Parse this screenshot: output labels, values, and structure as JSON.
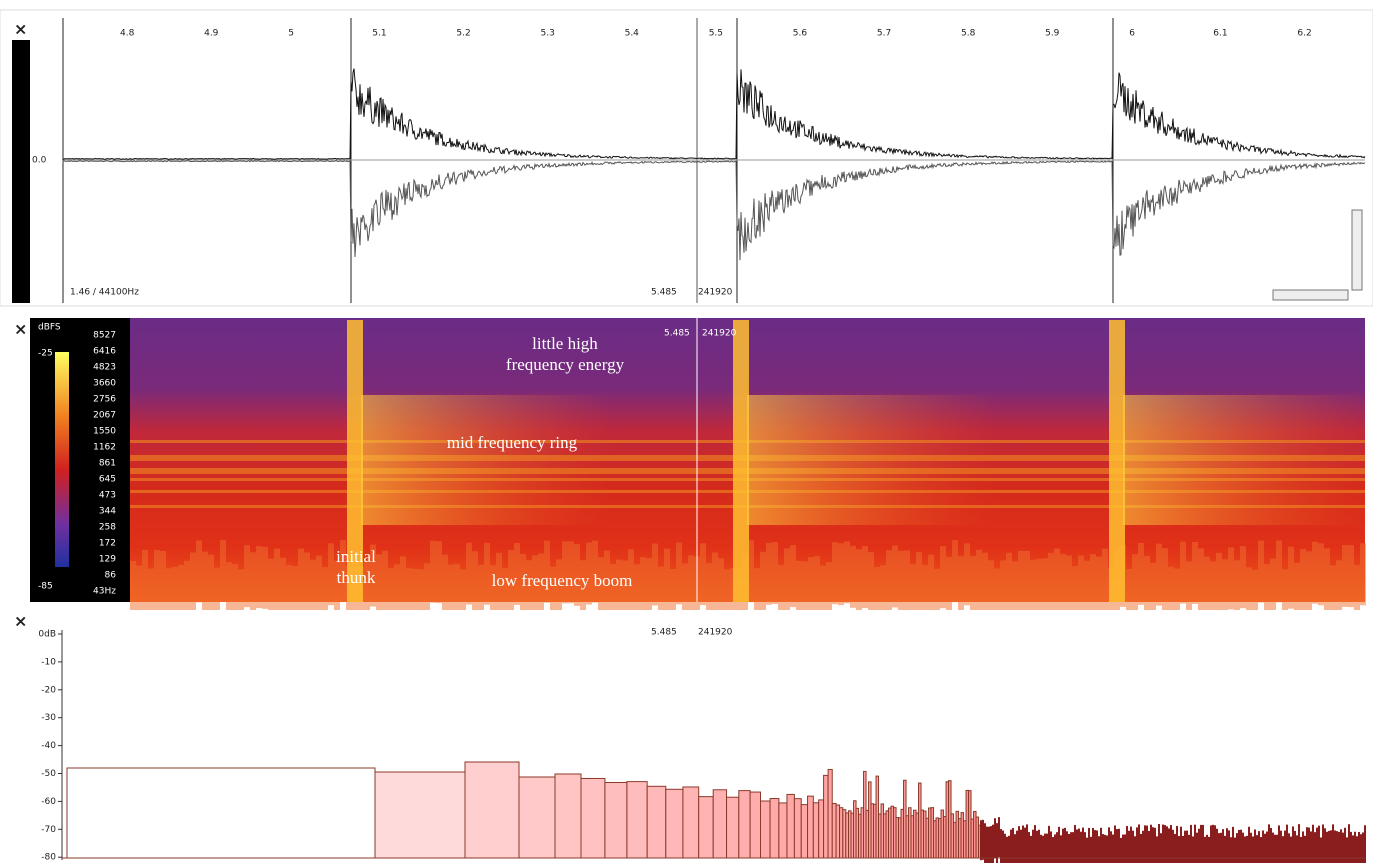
{
  "panes": [
    {
      "close": "×",
      "ruler": [
        "4.8",
        "4.9",
        "5",
        "5.1",
        "5.2",
        "5.3",
        "5.4",
        "5.5",
        "5.6",
        "5.7",
        "5.8",
        "5.9",
        "6",
        "6.1",
        "6.2"
      ],
      "scale_label": "0.0",
      "info": "1.46 / 44100Hz",
      "cursor_time": "5.485",
      "cursor_frame": "241920"
    },
    {
      "close": "×",
      "unit": "dBFS",
      "scale_max": "-25",
      "scale_min": "-85",
      "freq_labels": [
        "8527",
        "6416",
        "4823",
        "3660",
        "2756",
        "2067",
        "1550",
        "1162",
        "861",
        "645",
        "473",
        "344",
        "258",
        "172",
        "129",
        "86",
        "43Hz"
      ],
      "cursor_time": "5.485",
      "cursor_frame": "241920",
      "annotations": [
        {
          "lines": [
            "little high",
            "frequency energy"
          ]
        },
        {
          "lines": [
            "mid frequency ring"
          ]
        },
        {
          "lines": [
            "initial",
            "thunk"
          ]
        },
        {
          "lines": [
            "low frequency boom"
          ]
        }
      ]
    },
    {
      "close": "×",
      "db_labels": [
        "0dB",
        "-10",
        "-20",
        "-30",
        "-40",
        "-50",
        "-60",
        "-70",
        "-80"
      ],
      "cursor_time": "5.485",
      "cursor_frame": "241920"
    }
  ]
}
